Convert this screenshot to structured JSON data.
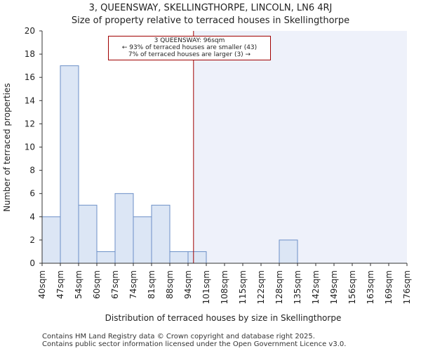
{
  "title_line1": "3, QUEENSWAY, SKELLINGTHORPE, LINCOLN, LN6 4RJ",
  "title_line2": "Size of property relative to terraced houses in Skellingthorpe",
  "annotation": {
    "line1": "3 QUEENSWAY: 96sqm",
    "line2": "← 93% of terraced houses are smaller (43)",
    "line3": "7% of terraced houses are larger (3) →"
  },
  "footer": {
    "line1": "Contains HM Land Registry data © Crown copyright and database right 2025.",
    "line2": "Contains public sector information licensed under the Open Government Licence v3.0."
  },
  "colors": {
    "bar_fill": "#dce6f5",
    "bar_stroke": "#6b8fc7",
    "marker": "#a00000",
    "highlight": "#eef1fa"
  },
  "chart_data": {
    "type": "bar",
    "xlabel": "Distribution of terraced houses by size in Skellingthorpe",
    "ylabel": "Number of terraced properties",
    "bin_edges": [
      "40sqm",
      "47sqm",
      "54sqm",
      "60sqm",
      "67sqm",
      "74sqm",
      "81sqm",
      "88sqm",
      "94sqm",
      "101sqm",
      "108sqm",
      "115sqm",
      "122sqm",
      "128sqm",
      "135sqm",
      "142sqm",
      "149sqm",
      "156sqm",
      "163sqm",
      "169sqm",
      "176sqm"
    ],
    "values": [
      4,
      17,
      5,
      1,
      6,
      4,
      5,
      1,
      1,
      0,
      0,
      0,
      0,
      2,
      0,
      0,
      0,
      0,
      0,
      0
    ],
    "ylim": [
      0,
      20
    ],
    "yticks": [
      0,
      2,
      4,
      6,
      8,
      10,
      12,
      14,
      16,
      18,
      20
    ],
    "marker_value": 96,
    "marker_bin_position": 8.3,
    "highlight_from_marker": true
  }
}
